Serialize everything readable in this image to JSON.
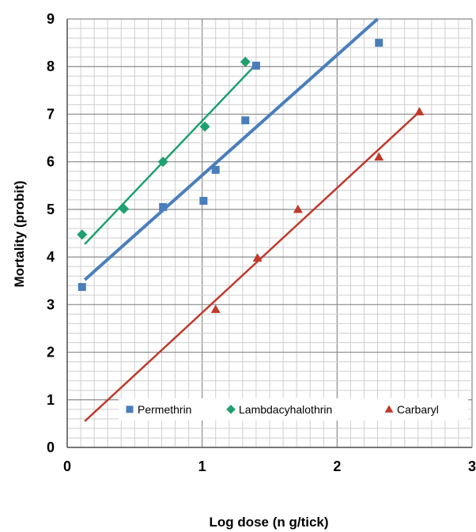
{
  "chart_data": {
    "type": "scatter",
    "xlabel": "Log dose (n g/tick)",
    "ylabel": "Mortality (probit)",
    "xlim": [
      0,
      3
    ],
    "ylim": [
      0,
      9
    ],
    "x_ticks": [
      "0",
      "1",
      "2",
      "3"
    ],
    "y_ticks": [
      "0",
      "1",
      "2",
      "3",
      "4",
      "5",
      "6",
      "7",
      "8",
      "9"
    ],
    "grid": true,
    "legend_position": "bottom",
    "series": [
      {
        "name": "Permethrin",
        "color": "#4a7ebb",
        "marker": "square",
        "points": [
          [
            0.11,
            3.37
          ],
          [
            0.71,
            5.05
          ],
          [
            1.01,
            5.18
          ],
          [
            1.1,
            5.83
          ],
          [
            1.32,
            6.87
          ],
          [
            1.4,
            8.02
          ],
          [
            2.31,
            8.5
          ]
        ],
        "trendline": [
          [
            0.13,
            3.52
          ],
          [
            2.3,
            9.0
          ]
        ]
      },
      {
        "name": "Lambdacyhalothrin",
        "color": "#1fa070",
        "marker": "diamond",
        "points": [
          [
            0.11,
            4.47
          ],
          [
            0.42,
            5.01
          ],
          [
            0.71,
            6.0
          ],
          [
            1.02,
            6.74
          ],
          [
            1.32,
            8.1
          ]
        ],
        "trendline": [
          [
            0.13,
            4.27
          ],
          [
            1.4,
            8.05
          ]
        ]
      },
      {
        "name": "Carbaryl",
        "color": "#c0392b",
        "marker": "triangle",
        "points": [
          [
            1.1,
            2.9
          ],
          [
            1.41,
            3.98
          ],
          [
            1.71,
            5.0
          ],
          [
            2.31,
            6.1
          ],
          [
            2.61,
            7.05
          ]
        ],
        "trendline": [
          [
            0.13,
            0.55
          ],
          [
            2.61,
            7.05
          ]
        ]
      }
    ]
  }
}
